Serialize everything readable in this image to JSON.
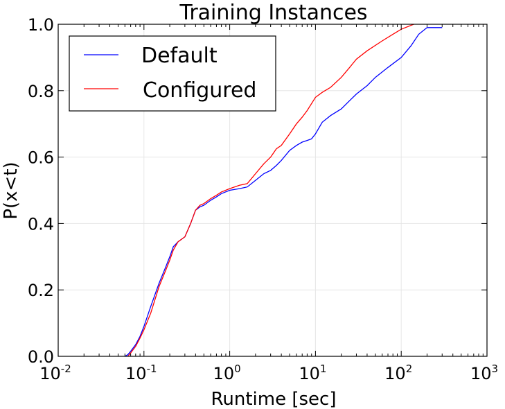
{
  "chart_data": {
    "type": "line",
    "title": "Training Instances",
    "xlabel": "Runtime [sec]",
    "ylabel": "P(x<t)",
    "x_scale": "log",
    "xlim": [
      0.01,
      1000
    ],
    "ylim": [
      0.0,
      1.0
    ],
    "grid": true,
    "legend_position": "top-left",
    "x_ticks": [
      {
        "base": "10",
        "exp": "-2",
        "value": 0.01
      },
      {
        "base": "10",
        "exp": "-1",
        "value": 0.1
      },
      {
        "base": "10",
        "exp": "0",
        "value": 1
      },
      {
        "base": "10",
        "exp": "1",
        "value": 10
      },
      {
        "base": "10",
        "exp": "2",
        "value": 100
      },
      {
        "base": "10",
        "exp": "3",
        "value": 1000
      }
    ],
    "y_ticks": [
      "0.0",
      "0.2",
      "0.4",
      "0.6",
      "0.8",
      "1.0"
    ],
    "series": [
      {
        "name": "Default",
        "color": "#0000ff",
        "points": [
          [
            0.06,
            0.0
          ],
          [
            0.065,
            0.005
          ],
          [
            0.07,
            0.015
          ],
          [
            0.08,
            0.035
          ],
          [
            0.09,
            0.06
          ],
          [
            0.1,
            0.09
          ],
          [
            0.12,
            0.15
          ],
          [
            0.15,
            0.22
          ],
          [
            0.18,
            0.27
          ],
          [
            0.2,
            0.3
          ],
          [
            0.22,
            0.33
          ],
          [
            0.25,
            0.345
          ],
          [
            0.3,
            0.36
          ],
          [
            0.35,
            0.4
          ],
          [
            0.4,
            0.44
          ],
          [
            0.45,
            0.45
          ],
          [
            0.5,
            0.455
          ],
          [
            0.6,
            0.47
          ],
          [
            0.7,
            0.48
          ],
          [
            0.8,
            0.49
          ],
          [
            1.0,
            0.5
          ],
          [
            1.3,
            0.505
          ],
          [
            1.6,
            0.51
          ],
          [
            2.0,
            0.53
          ],
          [
            2.5,
            0.55
          ],
          [
            3.0,
            0.56
          ],
          [
            3.5,
            0.575
          ],
          [
            4.0,
            0.59
          ],
          [
            5.0,
            0.62
          ],
          [
            6.0,
            0.635
          ],
          [
            7.0,
            0.645
          ],
          [
            8.0,
            0.65
          ],
          [
            9.0,
            0.655
          ],
          [
            10.0,
            0.67
          ],
          [
            12.0,
            0.705
          ],
          [
            15.0,
            0.725
          ],
          [
            20.0,
            0.745
          ],
          [
            25.0,
            0.77
          ],
          [
            30.0,
            0.79
          ],
          [
            40.0,
            0.815
          ],
          [
            50.0,
            0.84
          ],
          [
            70.0,
            0.87
          ],
          [
            100.0,
            0.9
          ],
          [
            130.0,
            0.935
          ],
          [
            160.0,
            0.97
          ],
          [
            200.0,
            0.99
          ],
          [
            300.0,
            0.99
          ]
        ]
      },
      {
        "name": "Configured",
        "color": "#ff0000",
        "points": [
          [
            0.065,
            0.0
          ],
          [
            0.07,
            0.01
          ],
          [
            0.08,
            0.03
          ],
          [
            0.09,
            0.055
          ],
          [
            0.1,
            0.08
          ],
          [
            0.12,
            0.13
          ],
          [
            0.15,
            0.21
          ],
          [
            0.18,
            0.26
          ],
          [
            0.2,
            0.29
          ],
          [
            0.22,
            0.32
          ],
          [
            0.25,
            0.345
          ],
          [
            0.3,
            0.36
          ],
          [
            0.35,
            0.4
          ],
          [
            0.4,
            0.44
          ],
          [
            0.45,
            0.455
          ],
          [
            0.5,
            0.46
          ],
          [
            0.6,
            0.475
          ],
          [
            0.7,
            0.485
          ],
          [
            0.8,
            0.495
          ],
          [
            1.0,
            0.505
          ],
          [
            1.3,
            0.515
          ],
          [
            1.6,
            0.52
          ],
          [
            2.0,
            0.55
          ],
          [
            2.5,
            0.58
          ],
          [
            3.0,
            0.6
          ],
          [
            3.5,
            0.625
          ],
          [
            4.0,
            0.635
          ],
          [
            5.0,
            0.67
          ],
          [
            6.0,
            0.7
          ],
          [
            7.0,
            0.72
          ],
          [
            8.0,
            0.74
          ],
          [
            10.0,
            0.78
          ],
          [
            12.0,
            0.795
          ],
          [
            15.0,
            0.81
          ],
          [
            20.0,
            0.84
          ],
          [
            25.0,
            0.87
          ],
          [
            30.0,
            0.895
          ],
          [
            40.0,
            0.92
          ],
          [
            60.0,
            0.95
          ],
          [
            80.0,
            0.97
          ],
          [
            100.0,
            0.985
          ],
          [
            140.0,
            1.0
          ]
        ]
      }
    ]
  }
}
